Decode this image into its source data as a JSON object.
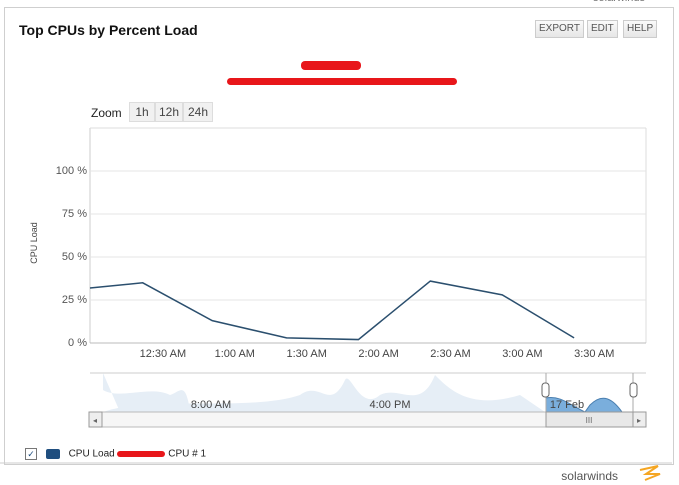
{
  "top_right_text": "solarwinds",
  "panel": {
    "title": "Top CPUs by Percent Load",
    "buttons": [
      "EXPORT",
      "EDIT",
      "HELP"
    ]
  },
  "zoom": {
    "label": "Zoom",
    "options": [
      "1h",
      "12h",
      "24h"
    ]
  },
  "chart_data": {
    "type": "line",
    "ylabel": "CPU Load",
    "yticks": [
      "0 %",
      "25 %",
      "50 %",
      "75 %",
      "100 %"
    ],
    "ylim": [
      0,
      125
    ],
    "xticks": [
      "12:30 AM",
      "1:00 AM",
      "1:30 AM",
      "2:00 AM",
      "2:30 AM",
      "3:00 AM",
      "3:30 AM"
    ],
    "xlim": [
      "00:00",
      "03:52"
    ],
    "grid": true,
    "series": [
      {
        "color": "#2b4f6e",
        "x": [
          "00:00",
          "00:22",
          "00:51",
          "01:22",
          "01:52",
          "02:22",
          "02:52",
          "03:22"
        ],
        "values": [
          32,
          35,
          13,
          3,
          2,
          36,
          28,
          3
        ]
      }
    ]
  },
  "navigator": {
    "labels": [
      "8:00 AM",
      "4:00 PM",
      "17 Feb"
    ],
    "scroll_thumb": "III",
    "fill_color": "#7aaedc"
  },
  "legend": {
    "checked": true,
    "color": "#1f4e7f",
    "label_prefix": "CPU Load",
    "label_suffix": "CPU # 1"
  },
  "footer": {
    "logo": "solarwinds"
  }
}
